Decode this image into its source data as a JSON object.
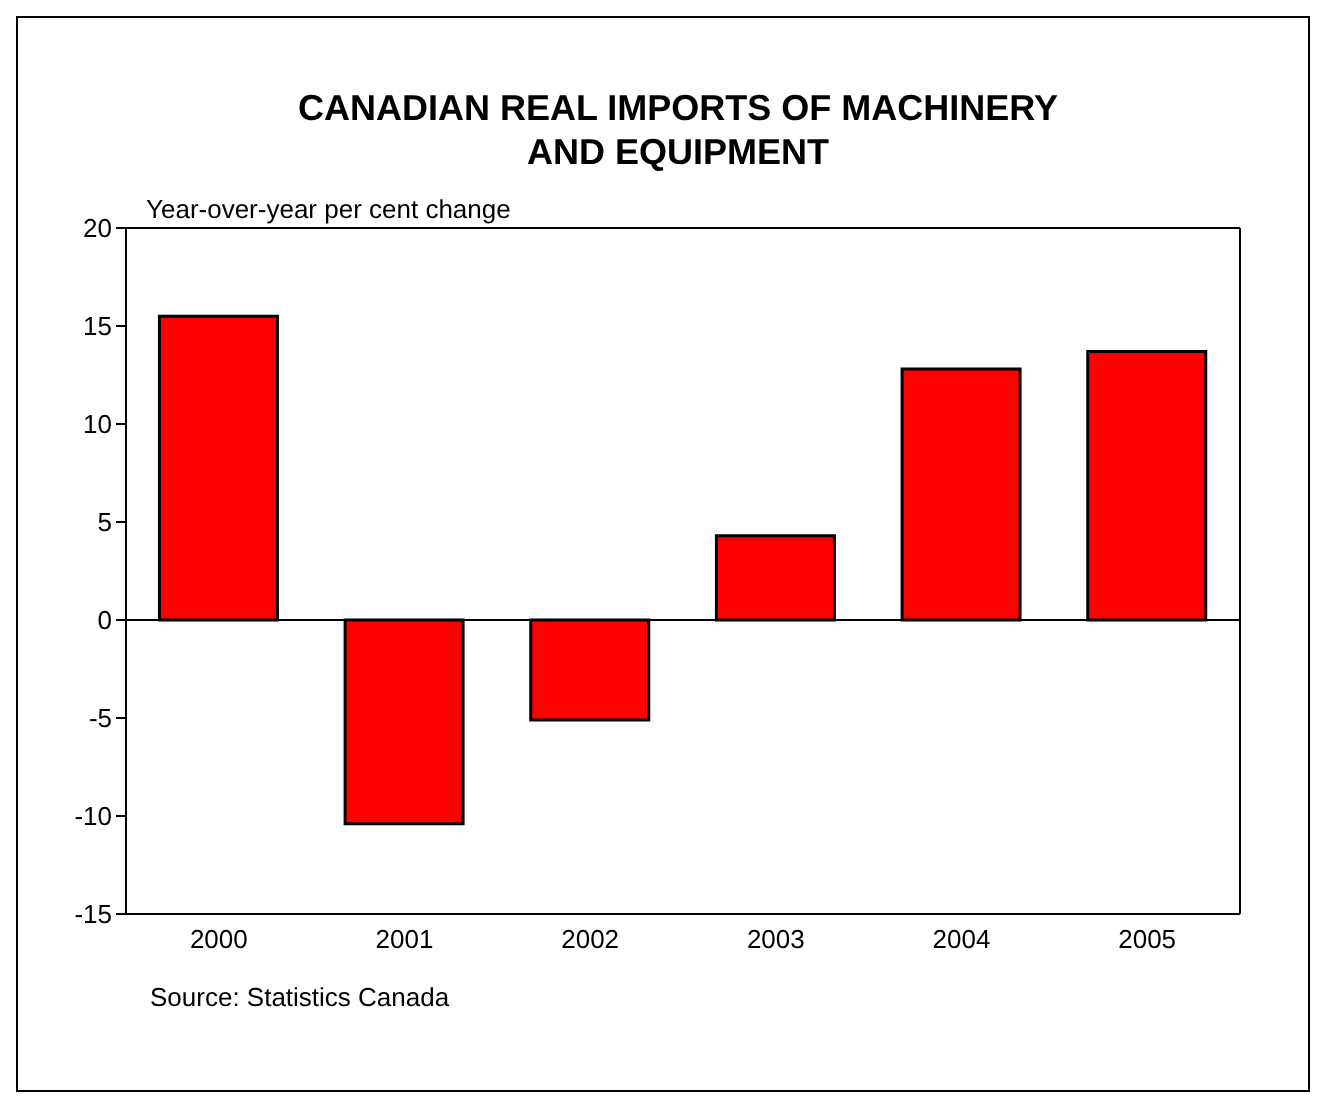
{
  "chart_data": {
    "type": "bar",
    "title": "CANADIAN REAL IMPORTS OF MACHINERY AND EQUIPMENT",
    "ylabel": "Year-over-year per cent change",
    "categories": [
      "2000",
      "2001",
      "2002",
      "2003",
      "2004",
      "2005"
    ],
    "values": [
      15.5,
      -10.4,
      -5.1,
      4.3,
      12.8,
      13.7
    ],
    "color": "#ff0000",
    "ylim": [
      -15,
      20
    ],
    "yticks": [
      -15,
      -10,
      -5,
      0,
      5,
      10,
      15,
      20
    ],
    "annotations": [
      "Source: Statistics Canada"
    ]
  }
}
